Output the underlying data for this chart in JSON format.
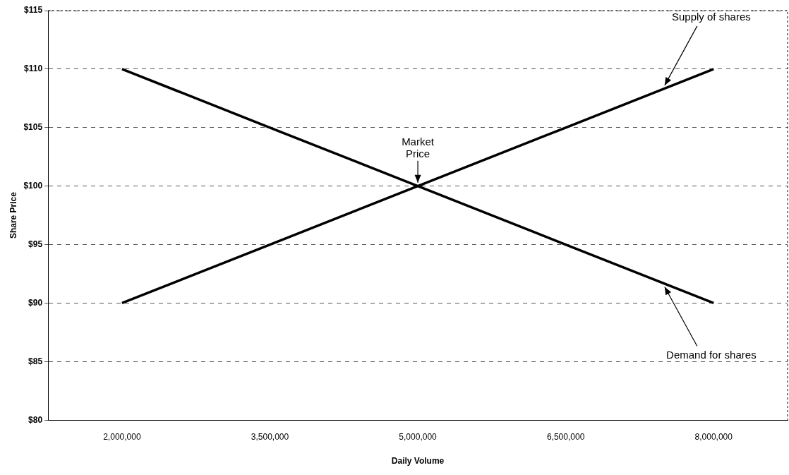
{
  "chart_data": {
    "type": "line",
    "xlabel": "Daily Volume",
    "ylabel": "Share Price",
    "categories": [
      "2,000,000",
      "3,500,000",
      "5,000,000",
      "6,500,000",
      "8,000,000"
    ],
    "series": [
      {
        "name": "Demand for shares",
        "color": "#000000",
        "values": [
          110,
          105,
          100,
          95,
          90
        ]
      },
      {
        "name": "Supply of shares",
        "color": "#000000",
        "values": [
          90,
          95,
          100,
          105,
          110
        ]
      }
    ],
    "annotations": [
      {
        "text": "Market Price",
        "x": "5,000,000",
        "y": 100
      }
    ],
    "ylim": [
      80,
      115
    ],
    "yticks": [
      {
        "value": 80,
        "label": "$80"
      },
      {
        "value": 85,
        "label": "$85"
      },
      {
        "value": 90,
        "label": "$90"
      },
      {
        "value": 95,
        "label": "$95"
      },
      {
        "value": 100,
        "label": "$100"
      },
      {
        "value": 105,
        "label": "$105"
      },
      {
        "value": 110,
        "label": "$110"
      },
      {
        "value": 115,
        "label": "$115"
      }
    ],
    "grid": "y",
    "legend": false,
    "marker": "none",
    "line_style": "solid"
  }
}
